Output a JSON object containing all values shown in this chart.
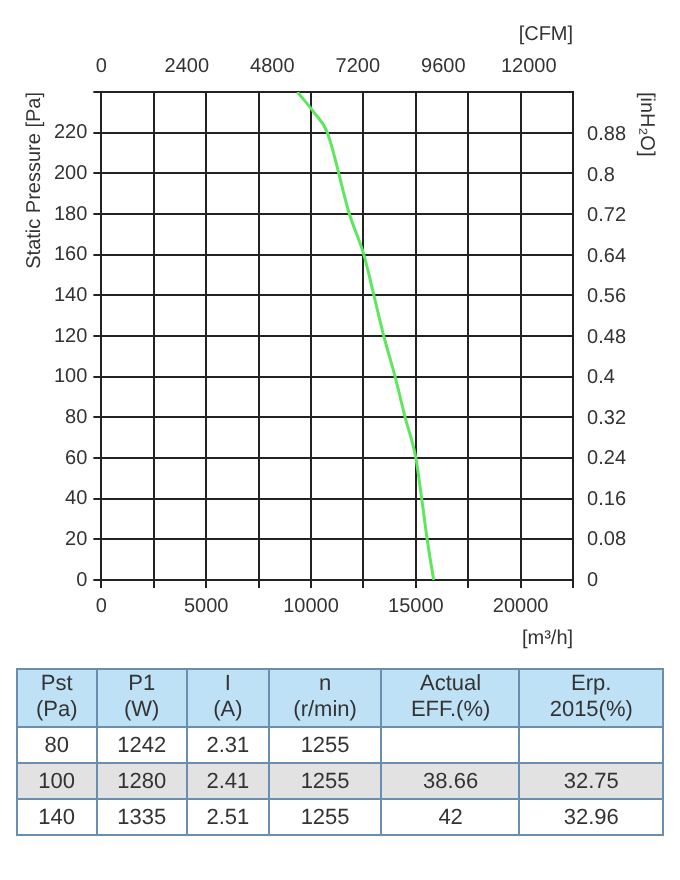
{
  "chart_data": [
    {
      "type": "line",
      "ylabel": "Static Pressure [Pa]",
      "y2label": "[inH₂O]",
      "xlabel": "[m³/h]",
      "x2label": "[CFM]",
      "series": [
        {
          "color": "#5ee65e",
          "x": [
            9350,
            10140,
            10780,
            11830,
            12520,
            13000,
            13470,
            14010,
            14490,
            15000,
            15280,
            15540,
            15850
          ],
          "values": [
            240,
            230,
            220,
            180,
            160,
            140,
            120,
            100,
            80,
            60,
            40,
            20,
            0
          ]
        }
      ],
      "xlim": [
        0,
        22500
      ],
      "xticks": [
        0,
        {
          "value": 2500,
          "label": null
        },
        5000,
        {
          "value": 7500,
          "label": null
        },
        10000,
        {
          "value": 12500,
          "label": null
        },
        15000,
        {
          "value": 17500,
          "label": null
        },
        20000,
        {
          "value": 22500,
          "label": null
        }
      ],
      "x2lim": [
        0,
        13243
      ],
      "x2ticks": [
        0,
        2400,
        4800,
        7200,
        9600,
        12000
      ],
      "ylim": [
        0,
        240
      ],
      "yticks": [
        0,
        20,
        40,
        60,
        80,
        100,
        120,
        140,
        160,
        180,
        200,
        220,
        {
          "value": 240,
          "label": null
        }
      ],
      "y2lim": [
        0,
        0.964
      ],
      "y2ticks": [
        0,
        0.08,
        0.16,
        0.24,
        0.32,
        0.4,
        0.48,
        0.56,
        0.64,
        0.72,
        0.8,
        0.88
      ],
      "grid": true,
      "marker": "none",
      "line_style": "solid"
    },
    {
      "type": "other",
      "categories": [
        "Pst\n(Pa)",
        "P1\n(W)",
        "I\n(A)",
        "n\n(r/min)",
        "Actual\nEFF.(%)",
        "Erp.\n2015(%)"
      ],
      "cell_labels": [
        [
          "80",
          "1242",
          "2.31",
          "1255",
          null,
          null
        ],
        [
          "100",
          "1280",
          "2.41",
          "1255",
          "38.66",
          "32.75"
        ],
        [
          "140",
          "1335",
          "2.51",
          "1255",
          "42",
          "32.96"
        ]
      ]
    }
  ]
}
